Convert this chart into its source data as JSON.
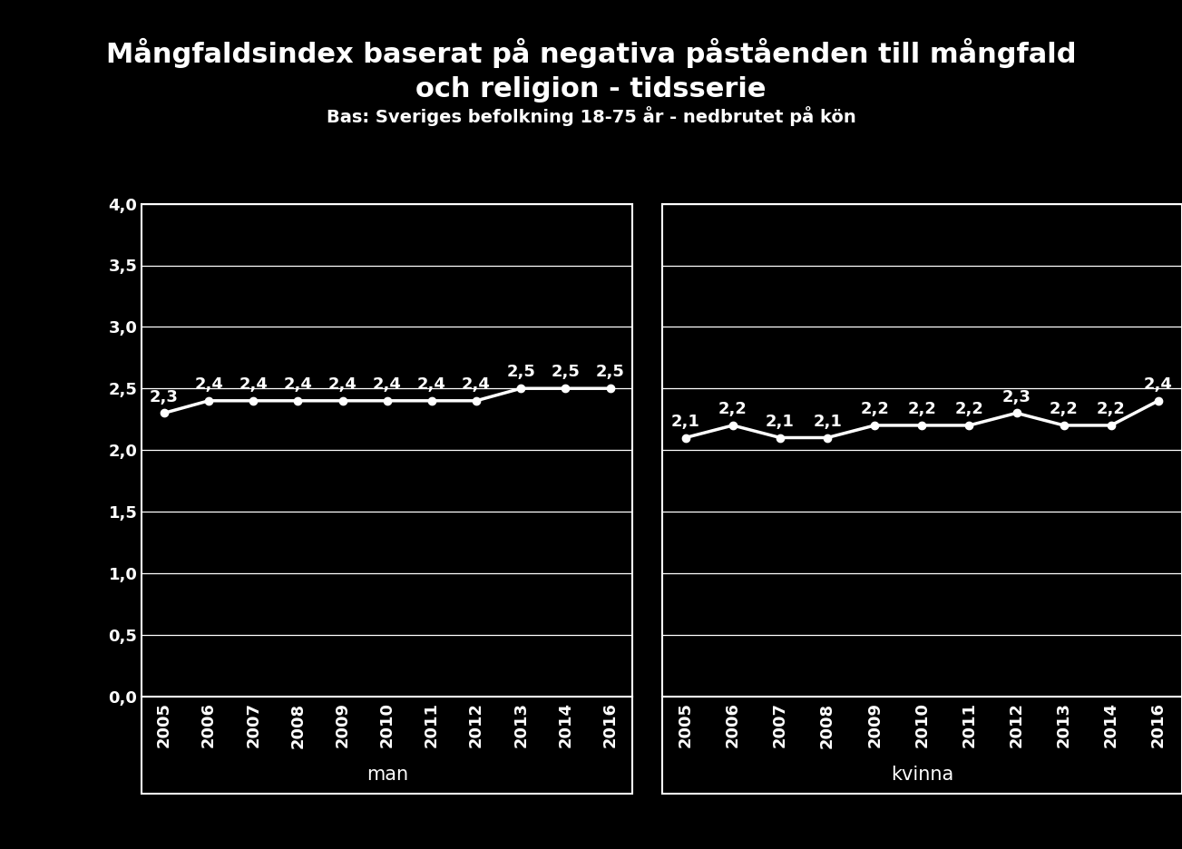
{
  "title_line1": "Mångfaldsindex baserat på negativa påståenden till mångfald",
  "title_line2": "och religion - tidsserie",
  "subtitle": "Bas: Sveriges befolkning 18-75 år - nedbrutet på kön",
  "background_color": "#000000",
  "text_color": "#ffffff",
  "line_color": "#ffffff",
  "grid_color": "#ffffff",
  "years_man": [
    2005,
    2006,
    2007,
    2008,
    2009,
    2010,
    2011,
    2012,
    2013,
    2014,
    2016
  ],
  "values_man": [
    2.3,
    2.4,
    2.4,
    2.4,
    2.4,
    2.4,
    2.4,
    2.4,
    2.5,
    2.5,
    2.5
  ],
  "labels_man": [
    "2,3",
    "2,4",
    "2,4",
    "2,4",
    "2,4",
    "2,4",
    "2,4",
    "2,4",
    "2,5",
    "2,5",
    "2,5"
  ],
  "years_kvinna": [
    2005,
    2006,
    2007,
    2008,
    2009,
    2010,
    2011,
    2012,
    2013,
    2014,
    2016
  ],
  "values_kvinna": [
    2.1,
    2.2,
    2.1,
    2.1,
    2.2,
    2.2,
    2.2,
    2.3,
    2.2,
    2.2,
    2.4
  ],
  "labels_kvinna": [
    "2,1",
    "2,2",
    "2,1",
    "2,1",
    "2,2",
    "2,2",
    "2,2",
    "2,3",
    "2,2",
    "2,2",
    "2,4"
  ],
  "group_labels": [
    "man",
    "kvinna"
  ],
  "ylim": [
    0.0,
    4.0
  ],
  "yticks": [
    0.0,
    0.5,
    1.0,
    1.5,
    2.0,
    2.5,
    3.0,
    3.5,
    4.0
  ],
  "ytick_labels": [
    "0,0",
    "0,5",
    "1,0",
    "1,5",
    "2,0",
    "2,5",
    "3,0",
    "3,5",
    "4,0"
  ],
  "title_fontsize": 22,
  "subtitle_fontsize": 14,
  "label_fontsize": 13,
  "tick_fontsize": 13,
  "group_fontsize": 15
}
